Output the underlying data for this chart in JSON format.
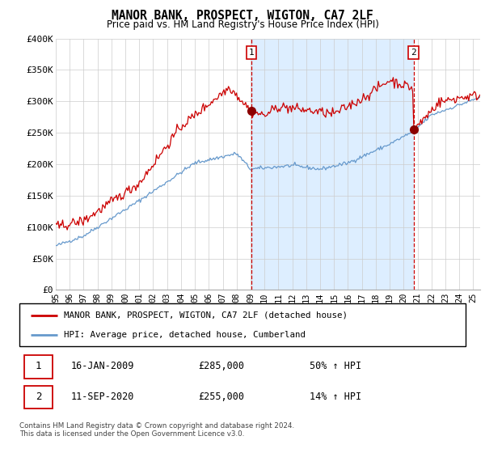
{
  "title": "MANOR BANK, PROSPECT, WIGTON, CA7 2LF",
  "subtitle": "Price paid vs. HM Land Registry's House Price Index (HPI)",
  "ylabel_ticks": [
    "£0",
    "£50K",
    "£100K",
    "£150K",
    "£200K",
    "£250K",
    "£300K",
    "£350K",
    "£400K"
  ],
  "ylim": [
    0,
    400000
  ],
  "xlim_start": 1995.0,
  "xlim_end": 2025.5,
  "red_color": "#cc0000",
  "blue_color": "#6699cc",
  "shade_color": "#ddeeff",
  "marker1_date": "16-JAN-2009",
  "marker1_price": 285000,
  "marker1_hpi_pct": "50%",
  "marker1_x": 2009.04,
  "marker2_date": "11-SEP-2020",
  "marker2_price": 255000,
  "marker2_hpi_pct": "14%",
  "marker2_x": 2020.71,
  "legend_label_red": "MANOR BANK, PROSPECT, WIGTON, CA7 2LF (detached house)",
  "legend_label_blue": "HPI: Average price, detached house, Cumberland",
  "footer": "Contains HM Land Registry data © Crown copyright and database right 2024.\nThis data is licensed under the Open Government Licence v3.0.",
  "background_color": "#ffffff",
  "grid_color": "#cccccc",
  "xtick_labels": [
    "95",
    "96",
    "97",
    "98",
    "99",
    "00",
    "01",
    "02",
    "03",
    "04",
    "05",
    "06",
    "07",
    "08",
    "09",
    "10",
    "11",
    "12",
    "13",
    "14",
    "15",
    "16",
    "17",
    "18",
    "19",
    "20",
    "21",
    "22",
    "23",
    "24",
    "25"
  ]
}
